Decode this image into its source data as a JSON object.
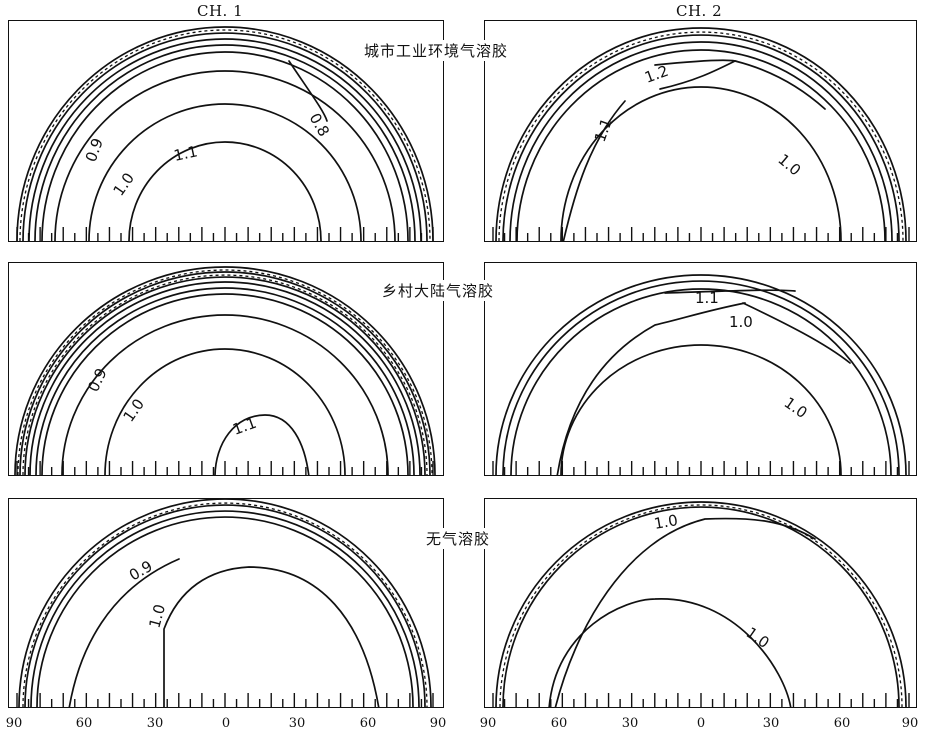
{
  "columns": [
    "CH. 1",
    "CH. 2"
  ],
  "rows": [
    {
      "title": "城市工业环境气溶胶"
    },
    {
      "title": "乡村大陆气溶胶"
    },
    {
      "title": "无气溶胶"
    }
  ],
  "axis": {
    "tick_labels": [
      "90",
      "60",
      "30",
      "0",
      "30",
      "60",
      "90"
    ]
  },
  "panels": [
    {
      "row": 0,
      "col": 0,
      "levels": [
        {
          "value": 1.1,
          "label": "1.1"
        },
        {
          "value": 1.0,
          "label": "1.0"
        },
        {
          "value": 0.9,
          "label": "0.9"
        },
        {
          "value": 0.8,
          "label": "0.8"
        }
      ]
    },
    {
      "row": 0,
      "col": 1,
      "levels": [
        {
          "value": 1.0,
          "label": "1.0"
        },
        {
          "value": 1.1,
          "label": "1.1"
        },
        {
          "value": 1.2,
          "label": "1.2"
        }
      ]
    },
    {
      "row": 1,
      "col": 0,
      "levels": [
        {
          "value": 1.1,
          "label": "1.1"
        },
        {
          "value": 1.0,
          "label": "1.0"
        },
        {
          "value": 0.9,
          "label": "0.9"
        }
      ]
    },
    {
      "row": 1,
      "col": 1,
      "levels": [
        {
          "value": 1.0,
          "label": "1.0"
        },
        {
          "value": 1.0,
          "label": "1.0"
        },
        {
          "value": 1.1,
          "label": "1.1"
        }
      ]
    },
    {
      "row": 2,
      "col": 0,
      "levels": [
        {
          "value": 1.0,
          "label": "1.0"
        },
        {
          "value": 0.9,
          "label": "0.9"
        }
      ]
    },
    {
      "row": 2,
      "col": 1,
      "levels": [
        {
          "value": 1.0,
          "label": "1.0"
        },
        {
          "value": 1.0,
          "label": "1.0"
        }
      ]
    }
  ]
}
